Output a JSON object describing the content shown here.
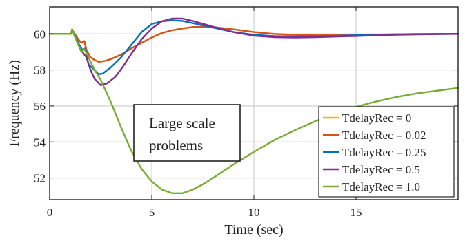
{
  "chart_data": {
    "type": "line",
    "title": "",
    "xlabel": "Time (sec)",
    "ylabel": "Frequency (Hz)",
    "xlim": [
      0,
      20
    ],
    "ylim": [
      50.8,
      61.5
    ],
    "xticks": [
      0,
      5,
      10,
      15
    ],
    "yticks": [
      52,
      54,
      56,
      58,
      60
    ],
    "grid": true,
    "legend_position": "bottom-right",
    "annotation": {
      "lines": [
        "Large scale",
        "problems"
      ]
    },
    "series": [
      {
        "name": "TdelayRec = 0",
        "color": "#EDB120",
        "points": [
          [
            0,
            60
          ],
          [
            1.05,
            60
          ],
          [
            1.1,
            60.25
          ],
          [
            1.2,
            60.05
          ],
          [
            1.4,
            59.7
          ],
          [
            1.55,
            59.5
          ],
          [
            1.7,
            59.6
          ],
          [
            1.8,
            59.1
          ],
          [
            2.0,
            58.7
          ],
          [
            2.2,
            58.55
          ],
          [
            2.4,
            58.45
          ],
          [
            2.7,
            58.5
          ],
          [
            3.0,
            58.6
          ],
          [
            3.5,
            58.85
          ],
          [
            4,
            59.2
          ],
          [
            4.5,
            59.5
          ],
          [
            5,
            59.8
          ],
          [
            5.5,
            60.05
          ],
          [
            6,
            60.2
          ],
          [
            6.5,
            60.3
          ],
          [
            7,
            60.38
          ],
          [
            7.5,
            60.4
          ],
          [
            8,
            60.38
          ],
          [
            9,
            60.25
          ],
          [
            10,
            60.1
          ],
          [
            11,
            60
          ],
          [
            12,
            59.95
          ],
          [
            13,
            59.92
          ],
          [
            14,
            59.92
          ],
          [
            15,
            59.94
          ],
          [
            16,
            59.96
          ],
          [
            17,
            59.98
          ],
          [
            18,
            59.99
          ],
          [
            19,
            60
          ],
          [
            20,
            60
          ]
        ]
      },
      {
        "name": "TdelayRec = 0.02",
        "color": "#D95319",
        "points": [
          [
            0,
            60
          ],
          [
            1.05,
            60
          ],
          [
            1.1,
            60.25
          ],
          [
            1.2,
            60.05
          ],
          [
            1.4,
            59.7
          ],
          [
            1.55,
            59.5
          ],
          [
            1.7,
            59.6
          ],
          [
            1.8,
            59.1
          ],
          [
            2.0,
            58.7
          ],
          [
            2.2,
            58.55
          ],
          [
            2.4,
            58.45
          ],
          [
            2.7,
            58.5
          ],
          [
            3.0,
            58.6
          ],
          [
            3.5,
            58.85
          ],
          [
            4,
            59.2
          ],
          [
            4.5,
            59.5
          ],
          [
            5,
            59.8
          ],
          [
            5.5,
            60.05
          ],
          [
            6,
            60.2
          ],
          [
            6.5,
            60.3
          ],
          [
            7,
            60.38
          ],
          [
            7.5,
            60.4
          ],
          [
            8,
            60.38
          ],
          [
            9,
            60.25
          ],
          [
            10,
            60.1
          ],
          [
            11,
            60
          ],
          [
            12,
            59.95
          ],
          [
            13,
            59.92
          ],
          [
            14,
            59.92
          ],
          [
            15,
            59.94
          ],
          [
            16,
            59.96
          ],
          [
            17,
            59.98
          ],
          [
            18,
            59.99
          ],
          [
            19,
            60
          ],
          [
            20,
            60
          ]
        ]
      },
      {
        "name": "TdelayRec = 0.25",
        "color": "#0072BD",
        "points": [
          [
            0,
            60
          ],
          [
            1.05,
            60
          ],
          [
            1.1,
            60.25
          ],
          [
            1.2,
            60.0
          ],
          [
            1.4,
            59.5
          ],
          [
            1.6,
            59.1
          ],
          [
            1.75,
            59.2
          ],
          [
            1.9,
            58.3
          ],
          [
            2.1,
            58.1
          ],
          [
            2.4,
            57.75
          ],
          [
            2.6,
            57.8
          ],
          [
            3.0,
            58.15
          ],
          [
            3.5,
            58.7
          ],
          [
            4,
            59.4
          ],
          [
            4.5,
            60.1
          ],
          [
            5,
            60.55
          ],
          [
            5.5,
            60.7
          ],
          [
            6,
            60.75
          ],
          [
            6.5,
            60.72
          ],
          [
            7,
            60.6
          ],
          [
            8,
            60.35
          ],
          [
            9,
            60.1
          ],
          [
            10,
            59.95
          ],
          [
            11,
            59.88
          ],
          [
            12,
            59.86
          ],
          [
            13,
            59.87
          ],
          [
            14,
            59.89
          ],
          [
            15,
            59.92
          ],
          [
            16,
            59.95
          ],
          [
            17,
            59.97
          ],
          [
            18,
            59.98
          ],
          [
            19,
            59.99
          ],
          [
            20,
            60
          ]
        ]
      },
      {
        "name": "TdelayRec = 0.5",
        "color": "#7E2F8E",
        "points": [
          [
            0,
            60
          ],
          [
            1.05,
            60
          ],
          [
            1.1,
            60.25
          ],
          [
            1.2,
            59.95
          ],
          [
            1.4,
            59.4
          ],
          [
            1.6,
            59.0
          ],
          [
            1.8,
            58.7
          ],
          [
            2.0,
            58.0
          ],
          [
            2.2,
            57.5
          ],
          [
            2.5,
            57.15
          ],
          [
            2.8,
            57.25
          ],
          [
            3.2,
            57.6
          ],
          [
            3.6,
            58.2
          ],
          [
            4,
            58.9
          ],
          [
            4.5,
            59.7
          ],
          [
            5,
            60.3
          ],
          [
            5.5,
            60.7
          ],
          [
            6,
            60.85
          ],
          [
            6.5,
            60.85
          ],
          [
            7,
            60.72
          ],
          [
            8,
            60.4
          ],
          [
            9,
            60.1
          ],
          [
            10,
            59.9
          ],
          [
            11,
            59.82
          ],
          [
            12,
            59.8
          ],
          [
            13,
            59.82
          ],
          [
            14,
            59.85
          ],
          [
            15,
            59.88
          ],
          [
            16,
            59.92
          ],
          [
            17,
            59.95
          ],
          [
            18,
            59.97
          ],
          [
            19,
            59.99
          ],
          [
            20,
            60
          ]
        ]
      },
      {
        "name": "TdelayRec = 1.0",
        "color": "#77AC30",
        "points": [
          [
            0,
            60
          ],
          [
            1.05,
            60
          ],
          [
            1.1,
            60.25
          ],
          [
            1.2,
            59.95
          ],
          [
            1.4,
            59.4
          ],
          [
            1.55,
            59.0
          ],
          [
            1.7,
            59.15
          ],
          [
            1.9,
            58.7
          ],
          [
            2.2,
            58.0
          ],
          [
            2.5,
            57.45
          ],
          [
            3.0,
            56.2
          ],
          [
            3.5,
            54.8
          ],
          [
            4,
            53.5
          ],
          [
            4.5,
            52.5
          ],
          [
            5,
            51.8
          ],
          [
            5.5,
            51.35
          ],
          [
            6,
            51.15
          ],
          [
            6.5,
            51.15
          ],
          [
            7,
            51.35
          ],
          [
            7.5,
            51.65
          ],
          [
            8,
            52.0
          ],
          [
            9,
            52.75
          ],
          [
            10,
            53.45
          ],
          [
            11,
            54.1
          ],
          [
            12,
            54.65
          ],
          [
            13,
            55.15
          ],
          [
            14,
            55.6
          ],
          [
            15,
            55.95
          ],
          [
            16,
            56.25
          ],
          [
            17,
            56.5
          ],
          [
            18,
            56.7
          ],
          [
            19,
            56.85
          ],
          [
            20,
            57.0
          ]
        ]
      }
    ]
  }
}
